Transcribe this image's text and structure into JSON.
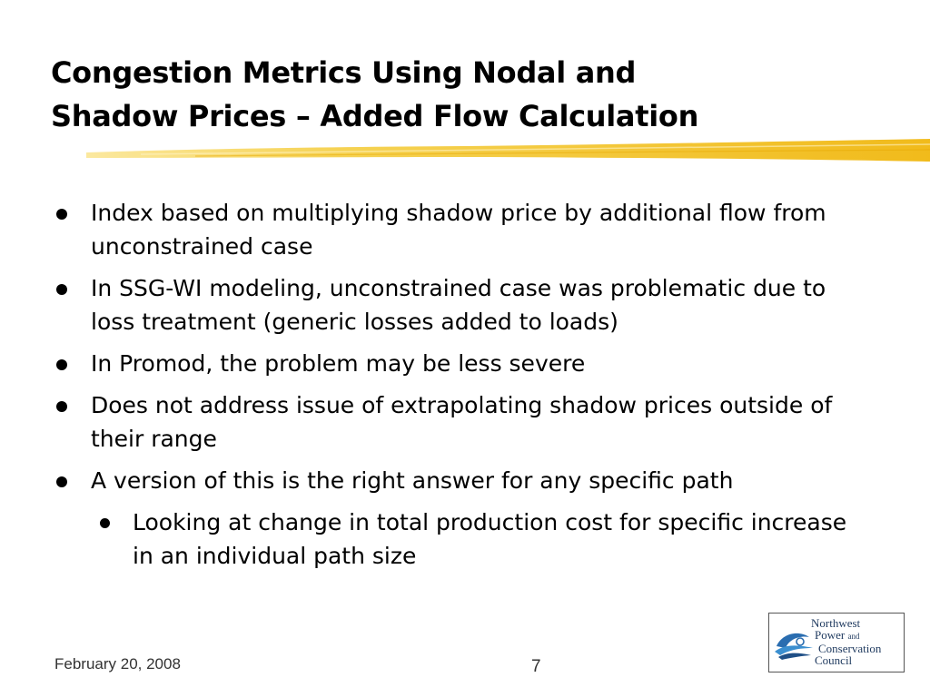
{
  "slide": {
    "title_lines": [
      "Congestion Metrics Using Nodal and",
      "Shadow Prices – Added Flow Calculation"
    ],
    "accent_color": "#f2c21b",
    "bullets": [
      {
        "level": 1,
        "text": "Index based on multiplying shadow price by additional flow from unconstrained case"
      },
      {
        "level": 1,
        "text": "In SSG-WI modeling, unconstrained case was problematic due to loss treatment (generic losses added to loads)"
      },
      {
        "level": 1,
        "text": "In Promod, the problem may be less severe"
      },
      {
        "level": 1,
        "text": "Does not address issue of extrapolating shadow prices outside of their range"
      },
      {
        "level": 1,
        "text": "A version of this is the right answer for any specific path"
      },
      {
        "level": 2,
        "text": "Looking at change in total production cost for specific increase in an individual path size"
      }
    ]
  },
  "footer": {
    "date": "February 20, 2008",
    "page_number": "7"
  },
  "logo": {
    "line1": "Northwest",
    "line2": "Power",
    "line2_and": "and",
    "line3": "Conservation",
    "line4": "Council",
    "icon": "wave-swirl-icon",
    "color": "#1f3a5f"
  }
}
